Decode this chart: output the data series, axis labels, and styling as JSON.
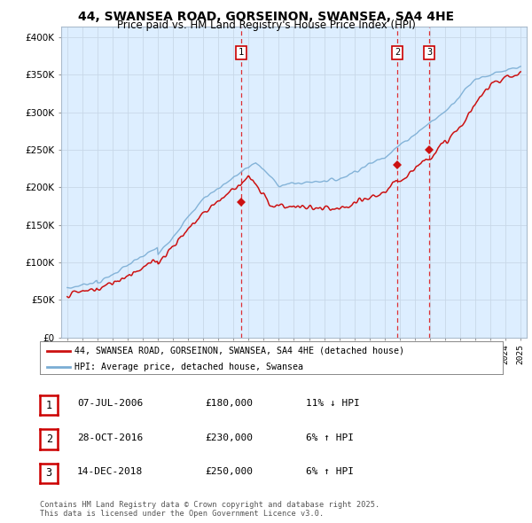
{
  "title_line1": "44, SWANSEA ROAD, GORSEINON, SWANSEA, SA4 4HE",
  "title_line2": "Price paid vs. HM Land Registry's House Price Index (HPI)",
  "ytick_values": [
    0,
    50000,
    100000,
    150000,
    200000,
    250000,
    300000,
    350000,
    400000
  ],
  "ylim": [
    0,
    415000
  ],
  "xlim_start": 1994.6,
  "xlim_end": 2025.4,
  "hpi_color": "#7aadd4",
  "price_color": "#cc1111",
  "dashed_color": "#dd0000",
  "transactions": [
    {
      "year": 2006.52,
      "price": 180000,
      "label": "1"
    },
    {
      "year": 2016.83,
      "price": 230000,
      "label": "2"
    },
    {
      "year": 2018.96,
      "price": 250000,
      "label": "3"
    }
  ],
  "legend_property_label": "44, SWANSEA ROAD, GORSEINON, SWANSEA, SA4 4HE (detached house)",
  "legend_hpi_label": "HPI: Average price, detached house, Swansea",
  "table_data": [
    {
      "num": "1",
      "date": "07-JUL-2006",
      "price": "£180,000",
      "change": "11% ↓ HPI"
    },
    {
      "num": "2",
      "date": "28-OCT-2016",
      "price": "£230,000",
      "change": "6% ↑ HPI"
    },
    {
      "num": "3",
      "date": "14-DEC-2018",
      "price": "£250,000",
      "change": "6% ↑ HPI"
    }
  ],
  "footer": "Contains HM Land Registry data © Crown copyright and database right 2025.\nThis data is licensed under the Open Government Licence v3.0.",
  "chart_bg": "#ddeeff",
  "fig_bg": "#ffffff"
}
